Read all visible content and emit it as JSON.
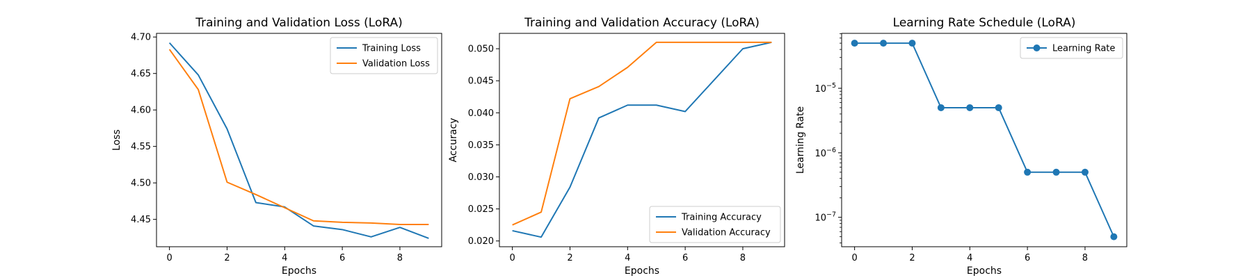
{
  "chart_data": [
    {
      "type": "line",
      "title": "Training and Validation Loss (LoRA)",
      "xlabel": "Epochs",
      "ylabel": "Loss",
      "x": [
        0,
        1,
        2,
        3,
        4,
        5,
        6,
        7,
        8,
        9
      ],
      "xlim": [
        -0.45,
        9.45
      ],
      "ylim": [
        4.4125,
        4.705
      ],
      "y_scale": "linear",
      "xticks": [
        0,
        2,
        4,
        6,
        8
      ],
      "xtick_labels": [
        "0",
        "2",
        "4",
        "6",
        "8"
      ],
      "yticks": [
        4.45,
        4.5,
        4.55,
        4.6,
        4.65,
        4.7
      ],
      "ytick_labels": [
        "4.45",
        "4.50",
        "4.55",
        "4.60",
        "4.65",
        "4.70"
      ],
      "legend_position": "upper right",
      "grid": false,
      "series": [
        {
          "name": "Training Loss",
          "color": "#1f77b4",
          "marker": "none",
          "values": [
            4.692,
            4.648,
            4.574,
            4.473,
            4.467,
            4.441,
            4.436,
            4.426,
            4.439,
            4.424
          ]
        },
        {
          "name": "Validation Loss",
          "color": "#ff7f0e",
          "marker": "none",
          "values": [
            4.683,
            4.628,
            4.501,
            4.484,
            4.466,
            4.448,
            4.446,
            4.445,
            4.443,
            4.443
          ]
        }
      ]
    },
    {
      "type": "line",
      "title": "Training and Validation Accuracy (LoRA)",
      "xlabel": "Epochs",
      "ylabel": "Accuracy",
      "x": [
        0,
        1,
        2,
        3,
        4,
        5,
        6,
        7,
        8,
        9
      ],
      "xlim": [
        -0.45,
        9.45
      ],
      "ylim": [
        0.0191,
        0.0524
      ],
      "y_scale": "linear",
      "xticks": [
        0,
        2,
        4,
        6,
        8
      ],
      "xtick_labels": [
        "0",
        "2",
        "4",
        "6",
        "8"
      ],
      "yticks": [
        0.02,
        0.025,
        0.03,
        0.035,
        0.04,
        0.045,
        0.05
      ],
      "ytick_labels": [
        "0.020",
        "0.025",
        "0.030",
        "0.035",
        "0.040",
        "0.045",
        "0.050"
      ],
      "legend_position": "lower right",
      "grid": false,
      "series": [
        {
          "name": "Training Accuracy",
          "color": "#1f77b4",
          "marker": "none",
          "values": [
            0.0216,
            0.0206,
            0.0284,
            0.0392,
            0.0412,
            0.0412,
            0.0402,
            0.0451,
            0.05,
            0.051
          ]
        },
        {
          "name": "Validation Accuracy",
          "color": "#ff7f0e",
          "marker": "none",
          "values": [
            0.0225,
            0.0245,
            0.0422,
            0.0441,
            0.0471,
            0.051,
            0.051,
            0.051,
            0.051,
            0.051
          ]
        }
      ]
    },
    {
      "type": "line",
      "title": "Learning Rate Schedule (LoRA)",
      "xlabel": "Epochs",
      "ylabel": "Learning Rate",
      "x": [
        0,
        1,
        2,
        3,
        4,
        5,
        6,
        7,
        8,
        9
      ],
      "xlim": [
        -0.45,
        9.45
      ],
      "ylim": [
        3.5e-08,
        7.1e-05
      ],
      "y_scale": "log",
      "xticks": [
        0,
        2,
        4,
        6,
        8
      ],
      "xtick_labels": [
        "0",
        "2",
        "4",
        "6",
        "8"
      ],
      "yticks": [
        1e-07,
        1e-06,
        1e-05
      ],
      "ytick_labels": [
        {
          "base": "10",
          "exp": "−7"
        },
        {
          "base": "10",
          "exp": "−6"
        },
        {
          "base": "10",
          "exp": "−5"
        }
      ],
      "legend_position": "upper right",
      "grid": false,
      "series": [
        {
          "name": "Learning Rate",
          "color": "#1f77b4",
          "marker": "circle",
          "values": [
            5e-05,
            5e-05,
            5e-05,
            5e-06,
            5e-06,
            5e-06,
            5e-07,
            5e-07,
            5e-07,
            5e-08
          ]
        }
      ]
    }
  ]
}
